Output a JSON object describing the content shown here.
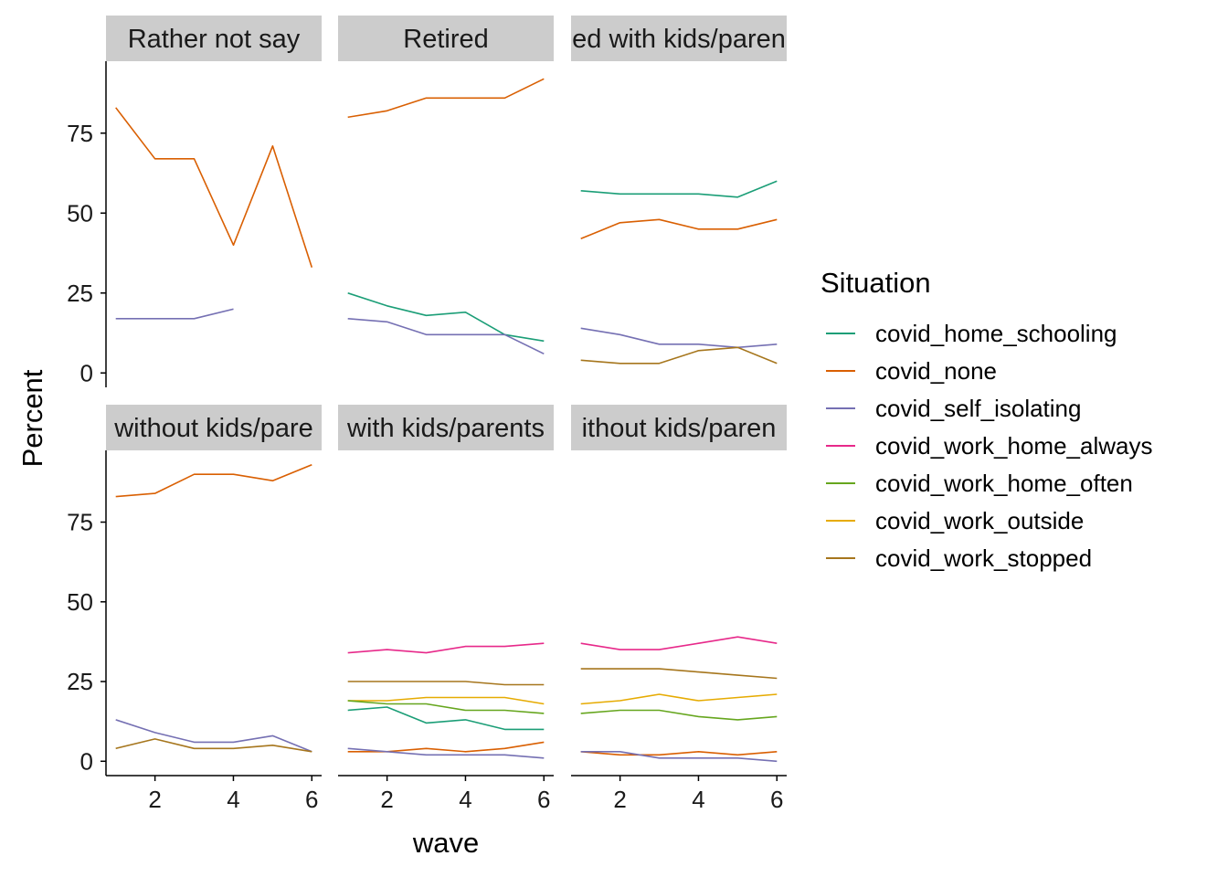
{
  "chart_data": {
    "type": "line",
    "facet_titles": [
      "Rather not say",
      "Retired",
      "ed with kids/paren",
      "without kids/pare",
      "with kids/parents",
      "ithout kids/paren"
    ],
    "xlabel": "wave",
    "ylabel": "Percent",
    "xlim": [
      1,
      6
    ],
    "ylim": [
      0,
      95
    ],
    "x_ticks": [
      2,
      4,
      6
    ],
    "y_ticks": [
      0,
      25,
      50,
      75
    ],
    "legend": {
      "title": "Situation",
      "placement": "right",
      "entries": [
        {
          "name": "covid_home_schooling",
          "color": "#1B9E77"
        },
        {
          "name": "covid_none",
          "color": "#D95F02"
        },
        {
          "name": "covid_self_isolating",
          "color": "#7570B3"
        },
        {
          "name": "covid_work_home_always",
          "color": "#E7298A"
        },
        {
          "name": "covid_work_home_often",
          "color": "#66A61E"
        },
        {
          "name": "covid_work_outside",
          "color": "#E6AB02"
        },
        {
          "name": "covid_work_stopped",
          "color": "#A6761D"
        }
      ]
    },
    "panels": [
      {
        "series": [
          {
            "name": "covid_none",
            "x": [
              1,
              2,
              3,
              4,
              5,
              6
            ],
            "y": [
              83,
              67,
              67,
              40,
              71,
              33
            ]
          },
          {
            "name": "covid_self_isolating",
            "x": [
              1,
              2,
              3,
              4
            ],
            "y": [
              17,
              17,
              17,
              20
            ]
          }
        ]
      },
      {
        "series": [
          {
            "name": "covid_none",
            "x": [
              1,
              2,
              3,
              4,
              5,
              6
            ],
            "y": [
              80,
              82,
              86,
              86,
              86,
              92
            ]
          },
          {
            "name": "covid_home_schooling",
            "x": [
              1,
              2,
              3,
              4,
              5,
              6
            ],
            "y": [
              25,
              21,
              18,
              19,
              12,
              10
            ]
          },
          {
            "name": "covid_self_isolating",
            "x": [
              1,
              2,
              3,
              4,
              5,
              6
            ],
            "y": [
              17,
              16,
              12,
              12,
              12,
              6
            ]
          }
        ]
      },
      {
        "series": [
          {
            "name": "covid_home_schooling",
            "x": [
              1,
              2,
              3,
              4,
              5,
              6
            ],
            "y": [
              57,
              56,
              56,
              56,
              55,
              60
            ]
          },
          {
            "name": "covid_none",
            "x": [
              1,
              2,
              3,
              4,
              5,
              6
            ],
            "y": [
              42,
              47,
              48,
              45,
              45,
              48
            ]
          },
          {
            "name": "covid_self_isolating",
            "x": [
              1,
              2,
              3,
              4,
              5,
              6
            ],
            "y": [
              14,
              12,
              9,
              9,
              8,
              9
            ]
          },
          {
            "name": "covid_work_stopped",
            "x": [
              1,
              2,
              3,
              4,
              5,
              6
            ],
            "y": [
              4,
              3,
              3,
              7,
              8,
              3
            ]
          }
        ]
      },
      {
        "series": [
          {
            "name": "covid_none",
            "x": [
              1,
              2,
              3,
              4,
              5,
              6
            ],
            "y": [
              83,
              84,
              90,
              90,
              88,
              93
            ]
          },
          {
            "name": "covid_self_isolating",
            "x": [
              1,
              2,
              3,
              4,
              5,
              6
            ],
            "y": [
              13,
              9,
              6,
              6,
              8,
              3
            ]
          },
          {
            "name": "covid_work_stopped",
            "x": [
              1,
              2,
              3,
              4,
              5,
              6
            ],
            "y": [
              4,
              7,
              4,
              4,
              5,
              3
            ]
          }
        ]
      },
      {
        "series": [
          {
            "name": "covid_work_home_always",
            "x": [
              1,
              2,
              3,
              4,
              5,
              6
            ],
            "y": [
              34,
              35,
              34,
              36,
              36,
              37
            ]
          },
          {
            "name": "covid_work_stopped",
            "x": [
              1,
              2,
              3,
              4,
              5,
              6
            ],
            "y": [
              25,
              25,
              25,
              25,
              24,
              24
            ]
          },
          {
            "name": "covid_work_outside",
            "x": [
              1,
              2,
              3,
              4,
              5,
              6
            ],
            "y": [
              19,
              19,
              20,
              20,
              20,
              18
            ]
          },
          {
            "name": "covid_work_home_often",
            "x": [
              1,
              2,
              3,
              4,
              5,
              6
            ],
            "y": [
              19,
              18,
              18,
              16,
              16,
              15
            ]
          },
          {
            "name": "covid_home_schooling",
            "x": [
              1,
              2,
              3,
              4,
              5,
              6
            ],
            "y": [
              16,
              17,
              12,
              13,
              10,
              10
            ]
          },
          {
            "name": "covid_none",
            "x": [
              1,
              2,
              3,
              4,
              5,
              6
            ],
            "y": [
              3,
              3,
              4,
              3,
              4,
              6
            ]
          },
          {
            "name": "covid_self_isolating",
            "x": [
              1,
              2,
              3,
              4,
              5,
              6
            ],
            "y": [
              4,
              3,
              2,
              2,
              2,
              1
            ]
          }
        ]
      },
      {
        "series": [
          {
            "name": "covid_work_home_always",
            "x": [
              1,
              2,
              3,
              4,
              5,
              6
            ],
            "y": [
              37,
              35,
              35,
              37,
              39,
              37
            ]
          },
          {
            "name": "covid_work_stopped",
            "x": [
              1,
              2,
              3,
              4,
              5,
              6
            ],
            "y": [
              29,
              29,
              29,
              28,
              27,
              26
            ]
          },
          {
            "name": "covid_work_outside",
            "x": [
              1,
              2,
              3,
              4,
              5,
              6
            ],
            "y": [
              18,
              19,
              21,
              19,
              20,
              21
            ]
          },
          {
            "name": "covid_work_home_often",
            "x": [
              1,
              2,
              3,
              4,
              5,
              6
            ],
            "y": [
              15,
              16,
              16,
              14,
              13,
              14
            ]
          },
          {
            "name": "covid_none",
            "x": [
              1,
              2,
              3,
              4,
              5,
              6
            ],
            "y": [
              3,
              2,
              2,
              3,
              2,
              3
            ]
          },
          {
            "name": "covid_self_isolating",
            "x": [
              1,
              2,
              3,
              4,
              5,
              6
            ],
            "y": [
              3,
              3,
              1,
              1,
              1,
              0
            ]
          }
        ]
      }
    ]
  }
}
